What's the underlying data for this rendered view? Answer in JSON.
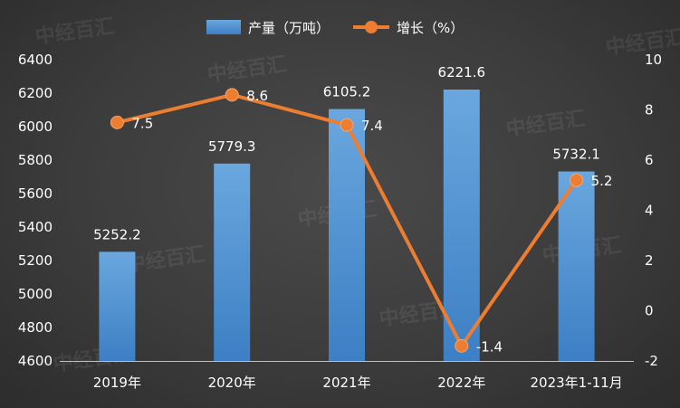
{
  "chart_data": {
    "type": "bar+line",
    "categories": [
      "2019年",
      "2020年",
      "2021年",
      "2022年",
      "2023年1-11月"
    ],
    "series": [
      {
        "name": "产量（万吨）",
        "type": "bar",
        "axis": "left",
        "color": "#5b9bd5",
        "values": [
          5252.2,
          5779.3,
          6105.2,
          6221.6,
          5732.1
        ],
        "labels": [
          "5252.2",
          "5779.3",
          "6105.2",
          "6221.6",
          "5732.1"
        ]
      },
      {
        "name": "增长（%）",
        "type": "line",
        "axis": "right",
        "color": "#ed7d31",
        "values": [
          7.5,
          8.6,
          7.4,
          -1.4,
          5.2
        ],
        "labels": [
          "7.5",
          "8.6",
          "7.4",
          "-1.4",
          "5.2"
        ]
      }
    ],
    "y_left": {
      "min": 4600,
      "max": 6400,
      "ticks": [
        "4600",
        "4800",
        "5000",
        "5200",
        "5400",
        "5600",
        "5800",
        "6000",
        "6200",
        "6400"
      ]
    },
    "y_right": {
      "min": -2,
      "max": 10,
      "ticks": [
        "-2",
        "0",
        "2",
        "4",
        "6",
        "8",
        "10"
      ]
    },
    "legend_position": "top-center",
    "grid": false
  },
  "watermark": {
    "text": "中经百汇"
  }
}
